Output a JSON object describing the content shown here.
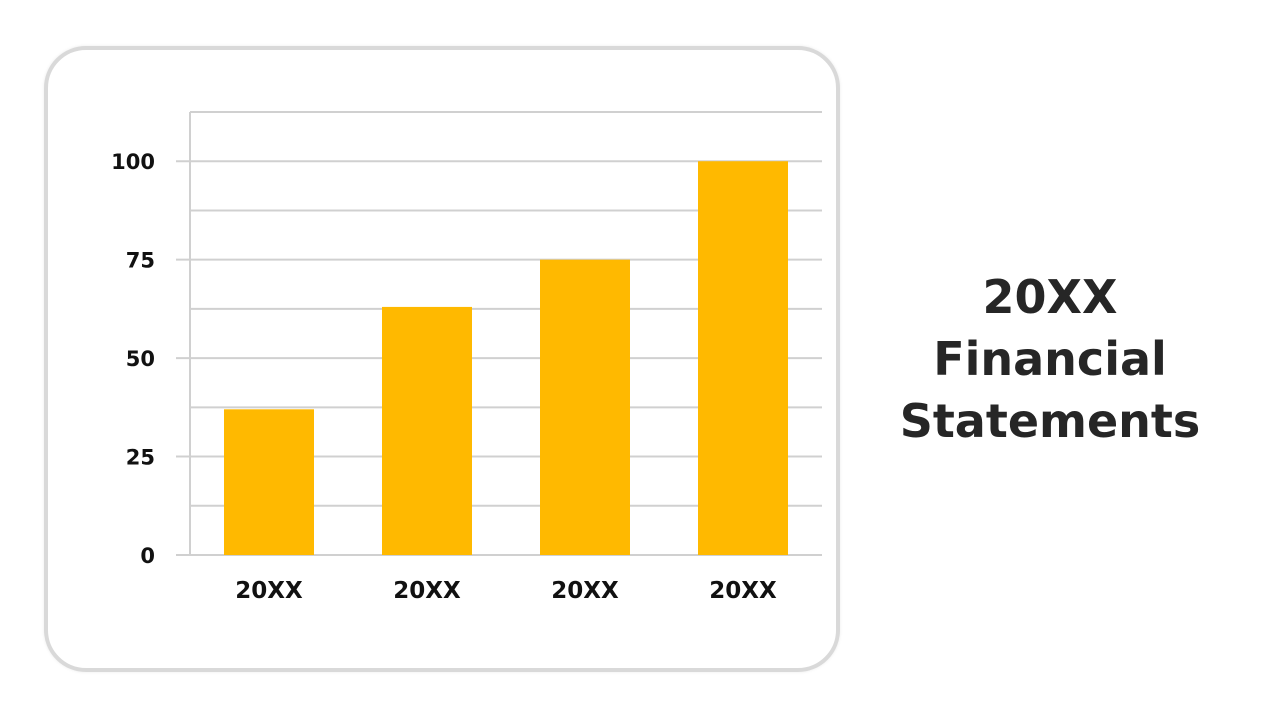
{
  "slide": {
    "title_lines": [
      "20XX",
      "Financial",
      "Statements"
    ]
  },
  "chart_data": {
    "type": "bar",
    "categories": [
      "20XX",
      "20XX",
      "20XX",
      "20XX"
    ],
    "values": [
      37,
      63,
      75,
      100
    ],
    "ylim": [
      0,
      112.5
    ],
    "yticks": [
      0,
      25,
      50,
      75,
      100
    ],
    "y_tick_labels": [
      "0",
      "25",
      "50",
      "75",
      "100"
    ],
    "grid": true,
    "legend": "none",
    "bar_color": "#FFB900",
    "grid_color": "#d0d0d0",
    "title": "",
    "xlabel": "",
    "ylabel": ""
  }
}
